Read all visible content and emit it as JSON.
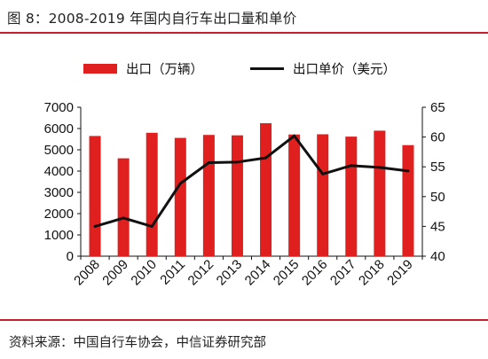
{
  "figure": {
    "title": "图 8：2008-2019 年国内自行车出口量和单价",
    "source": "资料来源：中国自行车协会，中信证券研究部"
  },
  "colors": {
    "bar": "#e01f1f",
    "line": "#111111",
    "rule": "#c41f2a"
  },
  "chart_data": {
    "type": "bar",
    "categories": [
      "2008",
      "2009",
      "2010",
      "2011",
      "2012",
      "2013",
      "2014",
      "2015",
      "2016",
      "2017",
      "2018",
      "2019"
    ],
    "series": [
      {
        "name": "出口（万辆）",
        "type": "bar",
        "axis": "left",
        "values": [
          5650,
          4600,
          5800,
          5560,
          5700,
          5680,
          6250,
          5720,
          5730,
          5620,
          5900,
          5220
        ]
      },
      {
        "name": "出口单价（美元）",
        "type": "line",
        "axis": "right",
        "values": [
          45.0,
          46.4,
          45.0,
          52.2,
          55.7,
          55.8,
          56.5,
          60.2,
          53.8,
          55.2,
          54.9,
          54.3
        ]
      }
    ],
    "y_left": {
      "lim": [
        0,
        7000
      ],
      "ticks": [
        "0",
        "1000",
        "2000",
        "3000",
        "4000",
        "5000",
        "6000",
        "7000"
      ]
    },
    "y_right": {
      "lim": [
        40,
        65
      ],
      "ticks": [
        "40",
        "45",
        "50",
        "55",
        "60",
        "65"
      ]
    },
    "legend": "top",
    "grid": false
  }
}
